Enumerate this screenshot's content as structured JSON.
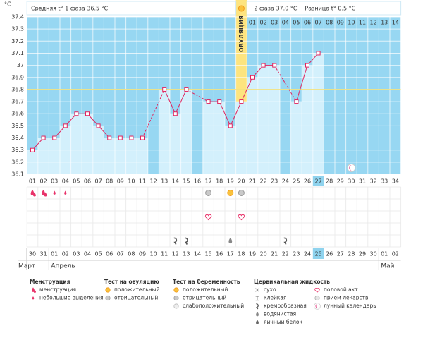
{
  "header": {
    "phase1": "Средняя t° 1 фаза 36.5 °C",
    "phase2": "2 фаза 37.0 °C",
    "difference": "Разница t° 0.5 °C"
  },
  "chart_data": {
    "type": "line",
    "y_label": "°C",
    "categories": [
      "01",
      "02",
      "03",
      "04",
      "05",
      "06",
      "07",
      "08",
      "09",
      "10",
      "11",
      "12",
      "13",
      "14",
      "15",
      "16",
      "17",
      "18",
      "19",
      "20",
      "21",
      "22",
      "23",
      "24",
      "25",
      "26",
      "27",
      "28",
      "29",
      "30",
      "31",
      "32",
      "33",
      "34"
    ],
    "values": [
      36.3,
      36.4,
      36.4,
      36.5,
      36.6,
      36.6,
      36.5,
      36.4,
      36.4,
      36.4,
      36.4,
      null,
      36.8,
      36.6,
      36.8,
      null,
      36.7,
      36.7,
      36.5,
      36.7,
      36.9,
      37.0,
      37.0,
      null,
      36.7,
      37.0,
      37.1,
      null,
      null,
      null,
      null,
      null,
      null,
      null
    ],
    "color": "#e0245e",
    "bar_color": "#d3f0fc",
    "background": "#97d7f2",
    "ylim": [
      36.1,
      37.4
    ],
    "yticks": [
      36.1,
      36.2,
      36.3,
      36.4,
      36.5,
      36.6,
      36.7,
      36.8,
      36.9,
      37,
      37.1,
      37.2,
      37.3,
      37.4
    ],
    "cover_line": 36.8,
    "cover_line_color": "#f3e27c",
    "ovulation_label": "ОВУЛЯЦИЯ",
    "ovulation_day": "20",
    "ovulation_color": "#fde47f",
    "phase2_days": [
      null,
      null,
      null,
      null,
      null,
      null,
      null,
      null,
      null,
      null,
      null,
      null,
      null,
      null,
      null,
      null,
      null,
      null,
      null,
      null,
      "01",
      "02",
      "03",
      "04",
      "05",
      "06",
      "07",
      "08",
      "09",
      "10",
      "11",
      "12",
      "13",
      "14"
    ],
    "today": "27",
    "today_color": "#8fd3ee"
  },
  "markers": [
    {
      "day": "01",
      "kind": "menstruation"
    },
    {
      "day": "02",
      "kind": "menstruation"
    },
    {
      "day": "03",
      "kind": "spotting"
    },
    {
      "day": "04",
      "kind": "spotting"
    },
    {
      "day": "17",
      "kind": "ovulation-negative"
    },
    {
      "day": "19",
      "kind": "ovulation-positive"
    },
    {
      "day": "20",
      "kind": "ovulation-negative"
    },
    {
      "day": "17",
      "kind": "sex"
    },
    {
      "day": "20",
      "kind": "sex"
    },
    {
      "day": "14",
      "kind": "creamy"
    },
    {
      "day": "15",
      "kind": "creamy"
    },
    {
      "day": "19",
      "kind": "watery"
    },
    {
      "day": "24",
      "kind": "creamy"
    },
    {
      "day": "30",
      "kind": "moon"
    }
  ],
  "calendar": {
    "dates": [
      {
        "text": "30",
        "color": "#333"
      },
      {
        "text": "31",
        "color": "#d81b4a"
      },
      {
        "text": "01",
        "color": "#d81b4a"
      },
      {
        "text": "02",
        "color": "#333"
      },
      {
        "text": "03",
        "color": "#333"
      },
      {
        "text": "04",
        "color": "#333"
      },
      {
        "text": "05",
        "color": "#333"
      },
      {
        "text": "06",
        "color": "#333"
      },
      {
        "text": "07",
        "color": "#d81b4a"
      },
      {
        "text": "08",
        "color": "#d81b4a"
      },
      {
        "text": "09",
        "color": "#333"
      },
      {
        "text": "10",
        "color": "#333"
      },
      {
        "text": "11",
        "color": "#333"
      },
      {
        "text": "12",
        "color": "#333"
      },
      {
        "text": "13",
        "color": "#333"
      },
      {
        "text": "14",
        "color": "#d81b4a"
      },
      {
        "text": "15",
        "color": "#d81b4a"
      },
      {
        "text": "16",
        "color": "#333"
      },
      {
        "text": "17",
        "color": "#333"
      },
      {
        "text": "18",
        "color": "#333"
      },
      {
        "text": "19",
        "color": "#333"
      },
      {
        "text": "20",
        "color": "#333"
      },
      {
        "text": "21",
        "color": "#d81b4a"
      },
      {
        "text": "22",
        "color": "#d81b4a"
      },
      {
        "text": "23",
        "color": "#333"
      },
      {
        "text": "24",
        "color": "#333"
      },
      {
        "text": "25",
        "color": "#333"
      },
      {
        "text": "26",
        "color": "#333"
      },
      {
        "text": "27",
        "color": "#333"
      },
      {
        "text": "28",
        "color": "#d81b4a"
      },
      {
        "text": "29",
        "color": "#d81b4a"
      },
      {
        "text": "30",
        "color": "#333"
      },
      {
        "text": "01",
        "color": "#333"
      },
      {
        "text": "02",
        "color": "#333"
      }
    ],
    "months": [
      {
        "text": "Март",
        "day": "01"
      },
      {
        "text": "Апрель",
        "day": "03"
      },
      {
        "text": "Май",
        "day": "33"
      }
    ]
  },
  "legend": [
    {
      "title": "Менструация",
      "items": [
        {
          "text": "менструация",
          "kind": "menstruation"
        },
        {
          "text": "небольшие выделения",
          "kind": "spotting"
        }
      ]
    },
    {
      "title": "Тест на овуляцию",
      "items": [
        {
          "text": "положительный",
          "kind": "ovulation-positive"
        },
        {
          "text": "отрицательный",
          "kind": "ovulation-negative"
        }
      ]
    },
    {
      "title": "Тест на беременность",
      "items": [
        {
          "text": "положительный",
          "kind": "pregnancy-positive"
        },
        {
          "text": "отрицательный",
          "kind": "pregnancy-negative"
        },
        {
          "text": "слабоположительный",
          "kind": "pregnancy-weak"
        }
      ]
    },
    {
      "title": "Цервикальная жидкость",
      "items": [
        {
          "text": "сухо",
          "kind": "dry"
        },
        {
          "text": "клейкая",
          "kind": "sticky"
        },
        {
          "text": "кремообразная",
          "kind": "creamy"
        },
        {
          "text": "водянистая",
          "kind": "watery"
        },
        {
          "text": "яичный белок",
          "kind": "eggwhite"
        }
      ]
    },
    {
      "items": [
        {
          "text": "половой акт",
          "kind": "sex"
        },
        {
          "text": "прием лекарств",
          "kind": "medicine"
        },
        {
          "text": "лунный календарь",
          "kind": "moon"
        }
      ]
    }
  ]
}
